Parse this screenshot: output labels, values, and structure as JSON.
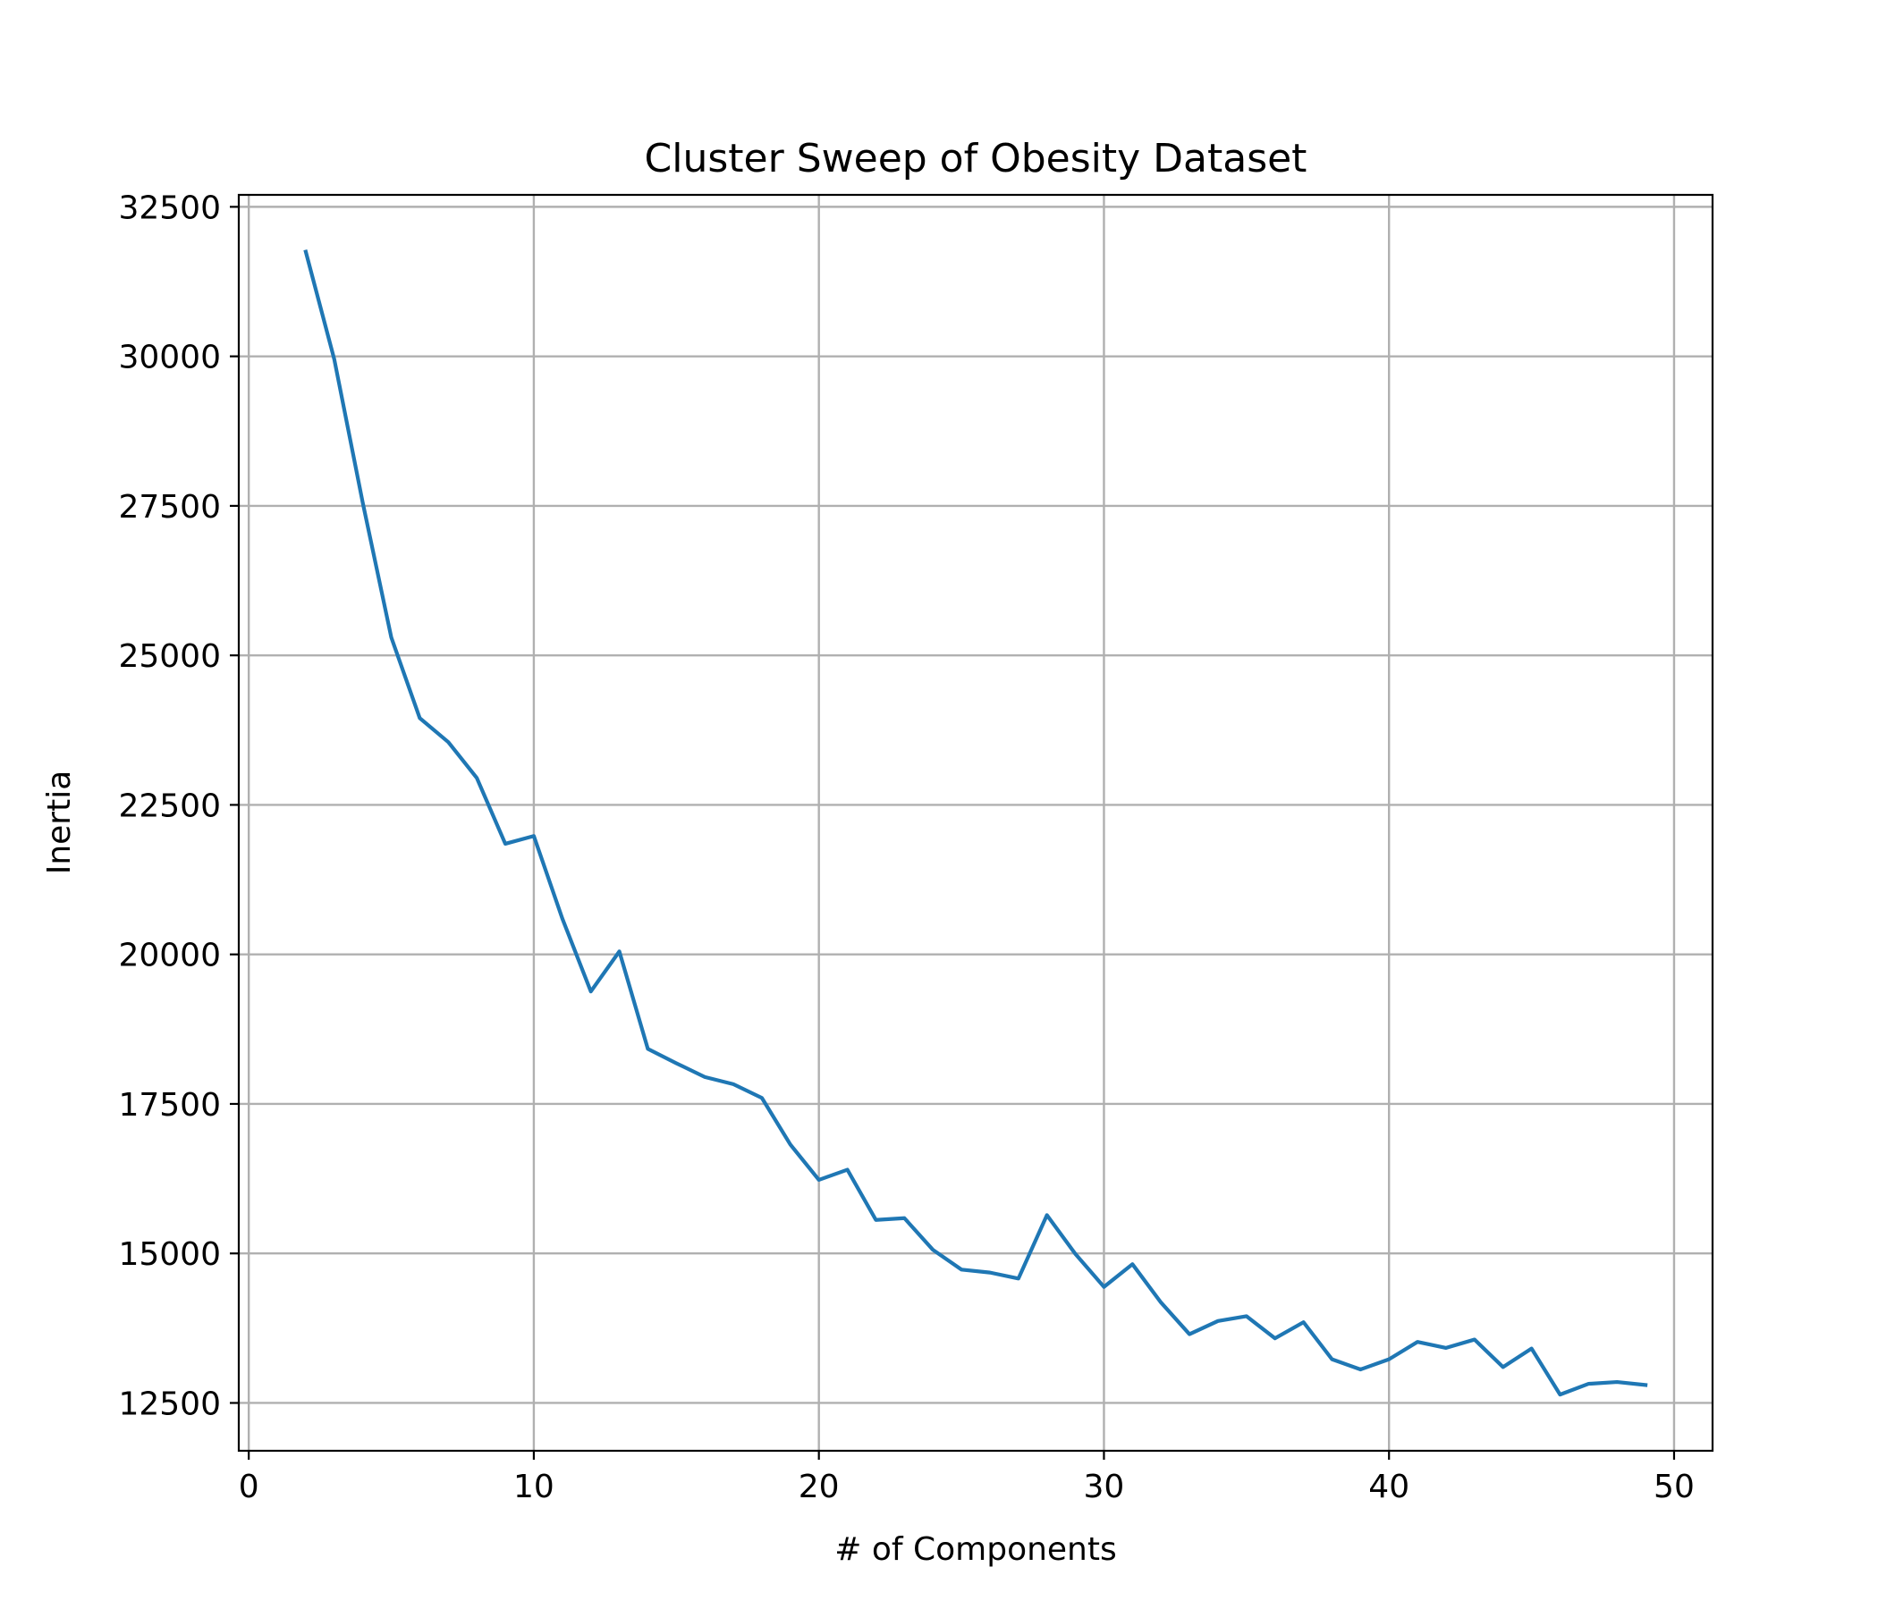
{
  "chart_data": {
    "type": "line",
    "title": "Cluster Sweep of Obesity Dataset",
    "xlabel": "# of Components",
    "ylabel": "Inertia",
    "xlim": [
      -0.35,
      51.35
    ],
    "ylim": [
      11700,
      32700
    ],
    "x_ticks": [
      0,
      10,
      20,
      30,
      40,
      50
    ],
    "y_ticks": [
      12500,
      15000,
      17500,
      20000,
      22500,
      25000,
      27500,
      30000,
      32500
    ],
    "grid": true,
    "legend": "none",
    "series": [
      {
        "color": "#1f77b4",
        "x": [
          2,
          3,
          4,
          5,
          6,
          7,
          8,
          9,
          10,
          11,
          12,
          13,
          14,
          15,
          16,
          17,
          18,
          19,
          20,
          21,
          22,
          23,
          24,
          25,
          26,
          27,
          28,
          29,
          30,
          31,
          32,
          33,
          34,
          35,
          36,
          37,
          38,
          39,
          40,
          41,
          42,
          43,
          44,
          45,
          46,
          47,
          48,
          49
        ],
        "y": [
          31750,
          29950,
          27550,
          25300,
          23950,
          23550,
          22950,
          21850,
          21980,
          20600,
          19380,
          20050,
          18420,
          18180,
          17950,
          17830,
          17600,
          16820,
          16230,
          16400,
          15560,
          15590,
          15060,
          14730,
          14680,
          14580,
          15640,
          14990,
          14440,
          14820,
          14180,
          13650,
          13870,
          13950,
          13580,
          13850,
          13230,
          13060,
          13230,
          13520,
          13420,
          13560,
          13100,
          13410,
          12640,
          12820,
          12850,
          12800
        ]
      }
    ]
  }
}
